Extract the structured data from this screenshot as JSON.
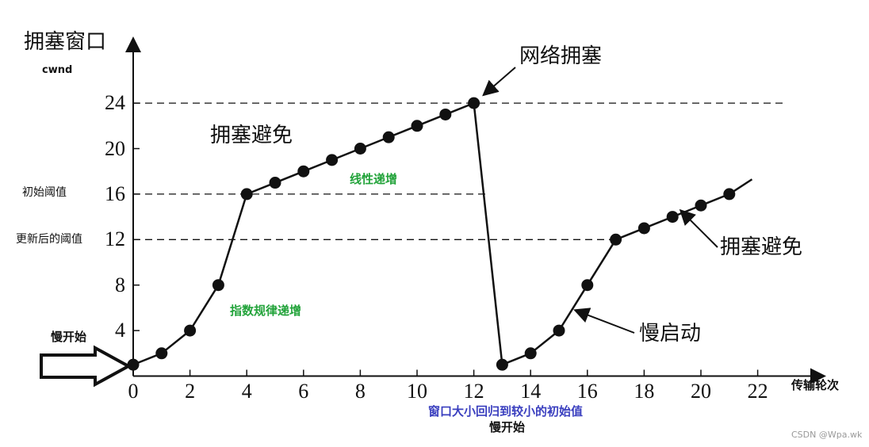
{
  "chart_data": {
    "type": "line",
    "ylabel": "拥塞窗口",
    "ylabel_sub": "cwnd",
    "xlabel": "传输轮次",
    "x_ticks": [
      0,
      2,
      4,
      6,
      8,
      10,
      12,
      14,
      16,
      18,
      20,
      22
    ],
    "y_ticks": [
      4,
      8,
      12,
      16,
      20,
      24
    ],
    "xlim": [
      0,
      24.5
    ],
    "ylim": [
      0,
      28.5
    ],
    "series": [
      {
        "x": [
          0,
          1,
          2,
          3,
          4,
          5,
          6,
          7,
          8,
          9,
          10,
          11,
          12,
          13,
          14,
          15,
          16,
          17,
          18,
          19,
          20,
          21
        ],
        "y": [
          1,
          2,
          4,
          8,
          16,
          17,
          18,
          19,
          20,
          21,
          22,
          23,
          24,
          1,
          2,
          4,
          8,
          12,
          13,
          14,
          15,
          16
        ]
      }
    ],
    "line_extend_to": {
      "x": 21.8,
      "y": 17.3
    },
    "reference_lines": [
      {
        "y": 24,
        "label": ""
      },
      {
        "y": 16,
        "label": "初始阈值"
      },
      {
        "y": 12,
        "label": "更新后的阈值"
      }
    ],
    "annotations": {
      "congestion_avoidance_1": "拥塞避免",
      "linear_increase": "线性递增",
      "exponential_increase": "指数规律递增",
      "network_congestion": "网络拥塞",
      "congestion_avoidance_2": "拥塞避免",
      "slow_start_2": "慢启动",
      "slow_start_1": "慢开始",
      "reset_window": "窗口大小回归到较小的初始值",
      "slow_start_3": "慢开始"
    }
  },
  "watermark": "CSDN @Wpa.wk"
}
